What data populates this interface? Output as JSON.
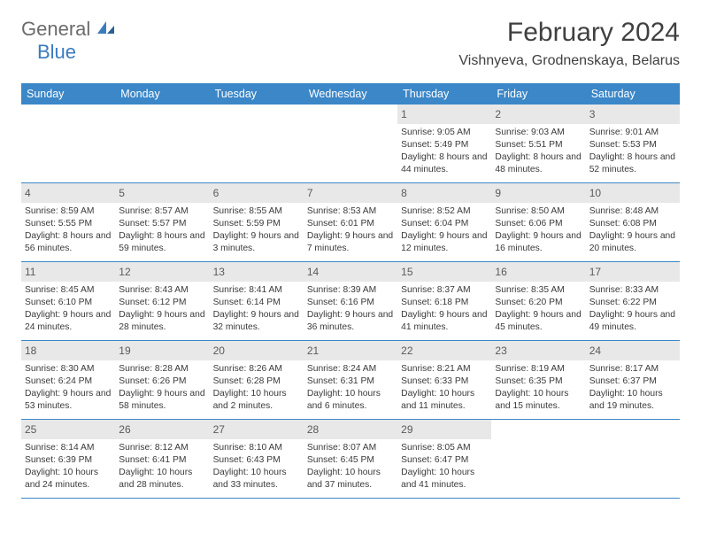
{
  "logo": {
    "part1": "General",
    "part2": "Blue"
  },
  "title": "February 2024",
  "location": "Vishnyeva, Grodnenskaya, Belarus",
  "colors": {
    "header_bg": "#3b87c8",
    "header_text": "#ffffff",
    "daynum_bg": "#e8e8e8",
    "border": "#3b87c8",
    "text": "#3a3a3a",
    "logo_gray": "#6b6b6b",
    "logo_blue": "#3b7bbf"
  },
  "fonts": {
    "title_size": 30,
    "location_size": 16,
    "header_size": 12.5,
    "daynum_size": 12,
    "info_size": 10.3
  },
  "day_names": [
    "Sunday",
    "Monday",
    "Tuesday",
    "Wednesday",
    "Thursday",
    "Friday",
    "Saturday"
  ],
  "weeks": [
    [
      {
        "n": "",
        "sr": "",
        "ss": "",
        "dl": ""
      },
      {
        "n": "",
        "sr": "",
        "ss": "",
        "dl": ""
      },
      {
        "n": "",
        "sr": "",
        "ss": "",
        "dl": ""
      },
      {
        "n": "",
        "sr": "",
        "ss": "",
        "dl": ""
      },
      {
        "n": "1",
        "sr": "Sunrise: 9:05 AM",
        "ss": "Sunset: 5:49 PM",
        "dl": "Daylight: 8 hours and 44 minutes."
      },
      {
        "n": "2",
        "sr": "Sunrise: 9:03 AM",
        "ss": "Sunset: 5:51 PM",
        "dl": "Daylight: 8 hours and 48 minutes."
      },
      {
        "n": "3",
        "sr": "Sunrise: 9:01 AM",
        "ss": "Sunset: 5:53 PM",
        "dl": "Daylight: 8 hours and 52 minutes."
      }
    ],
    [
      {
        "n": "4",
        "sr": "Sunrise: 8:59 AM",
        "ss": "Sunset: 5:55 PM",
        "dl": "Daylight: 8 hours and 56 minutes."
      },
      {
        "n": "5",
        "sr": "Sunrise: 8:57 AM",
        "ss": "Sunset: 5:57 PM",
        "dl": "Daylight: 8 hours and 59 minutes."
      },
      {
        "n": "6",
        "sr": "Sunrise: 8:55 AM",
        "ss": "Sunset: 5:59 PM",
        "dl": "Daylight: 9 hours and 3 minutes."
      },
      {
        "n": "7",
        "sr": "Sunrise: 8:53 AM",
        "ss": "Sunset: 6:01 PM",
        "dl": "Daylight: 9 hours and 7 minutes."
      },
      {
        "n": "8",
        "sr": "Sunrise: 8:52 AM",
        "ss": "Sunset: 6:04 PM",
        "dl": "Daylight: 9 hours and 12 minutes."
      },
      {
        "n": "9",
        "sr": "Sunrise: 8:50 AM",
        "ss": "Sunset: 6:06 PM",
        "dl": "Daylight: 9 hours and 16 minutes."
      },
      {
        "n": "10",
        "sr": "Sunrise: 8:48 AM",
        "ss": "Sunset: 6:08 PM",
        "dl": "Daylight: 9 hours and 20 minutes."
      }
    ],
    [
      {
        "n": "11",
        "sr": "Sunrise: 8:45 AM",
        "ss": "Sunset: 6:10 PM",
        "dl": "Daylight: 9 hours and 24 minutes."
      },
      {
        "n": "12",
        "sr": "Sunrise: 8:43 AM",
        "ss": "Sunset: 6:12 PM",
        "dl": "Daylight: 9 hours and 28 minutes."
      },
      {
        "n": "13",
        "sr": "Sunrise: 8:41 AM",
        "ss": "Sunset: 6:14 PM",
        "dl": "Daylight: 9 hours and 32 minutes."
      },
      {
        "n": "14",
        "sr": "Sunrise: 8:39 AM",
        "ss": "Sunset: 6:16 PM",
        "dl": "Daylight: 9 hours and 36 minutes."
      },
      {
        "n": "15",
        "sr": "Sunrise: 8:37 AM",
        "ss": "Sunset: 6:18 PM",
        "dl": "Daylight: 9 hours and 41 minutes."
      },
      {
        "n": "16",
        "sr": "Sunrise: 8:35 AM",
        "ss": "Sunset: 6:20 PM",
        "dl": "Daylight: 9 hours and 45 minutes."
      },
      {
        "n": "17",
        "sr": "Sunrise: 8:33 AM",
        "ss": "Sunset: 6:22 PM",
        "dl": "Daylight: 9 hours and 49 minutes."
      }
    ],
    [
      {
        "n": "18",
        "sr": "Sunrise: 8:30 AM",
        "ss": "Sunset: 6:24 PM",
        "dl": "Daylight: 9 hours and 53 minutes."
      },
      {
        "n": "19",
        "sr": "Sunrise: 8:28 AM",
        "ss": "Sunset: 6:26 PM",
        "dl": "Daylight: 9 hours and 58 minutes."
      },
      {
        "n": "20",
        "sr": "Sunrise: 8:26 AM",
        "ss": "Sunset: 6:28 PM",
        "dl": "Daylight: 10 hours and 2 minutes."
      },
      {
        "n": "21",
        "sr": "Sunrise: 8:24 AM",
        "ss": "Sunset: 6:31 PM",
        "dl": "Daylight: 10 hours and 6 minutes."
      },
      {
        "n": "22",
        "sr": "Sunrise: 8:21 AM",
        "ss": "Sunset: 6:33 PM",
        "dl": "Daylight: 10 hours and 11 minutes."
      },
      {
        "n": "23",
        "sr": "Sunrise: 8:19 AM",
        "ss": "Sunset: 6:35 PM",
        "dl": "Daylight: 10 hours and 15 minutes."
      },
      {
        "n": "24",
        "sr": "Sunrise: 8:17 AM",
        "ss": "Sunset: 6:37 PM",
        "dl": "Daylight: 10 hours and 19 minutes."
      }
    ],
    [
      {
        "n": "25",
        "sr": "Sunrise: 8:14 AM",
        "ss": "Sunset: 6:39 PM",
        "dl": "Daylight: 10 hours and 24 minutes."
      },
      {
        "n": "26",
        "sr": "Sunrise: 8:12 AM",
        "ss": "Sunset: 6:41 PM",
        "dl": "Daylight: 10 hours and 28 minutes."
      },
      {
        "n": "27",
        "sr": "Sunrise: 8:10 AM",
        "ss": "Sunset: 6:43 PM",
        "dl": "Daylight: 10 hours and 33 minutes."
      },
      {
        "n": "28",
        "sr": "Sunrise: 8:07 AM",
        "ss": "Sunset: 6:45 PM",
        "dl": "Daylight: 10 hours and 37 minutes."
      },
      {
        "n": "29",
        "sr": "Sunrise: 8:05 AM",
        "ss": "Sunset: 6:47 PM",
        "dl": "Daylight: 10 hours and 41 minutes."
      },
      {
        "n": "",
        "sr": "",
        "ss": "",
        "dl": ""
      },
      {
        "n": "",
        "sr": "",
        "ss": "",
        "dl": ""
      }
    ]
  ]
}
